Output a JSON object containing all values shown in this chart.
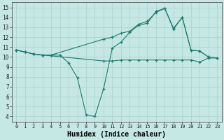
{
  "xlabel": "Humidex (Indice chaleur)",
  "bg_color": "#c5e8e5",
  "line_color": "#1e7b6e",
  "grid_color": "#aed4d0",
  "xlim": [
    -0.5,
    23.5
  ],
  "ylim": [
    3.5,
    15.5
  ],
  "x_ticks": [
    0,
    1,
    2,
    3,
    4,
    5,
    6,
    7,
    8,
    9,
    10,
    11,
    12,
    13,
    14,
    15,
    16,
    17,
    18,
    19,
    20,
    21,
    22,
    23
  ],
  "y_ticks": [
    4,
    5,
    6,
    7,
    8,
    9,
    10,
    11,
    12,
    13,
    14,
    15
  ],
  "series1_x": [
    0,
    1,
    2,
    3,
    10,
    11,
    12,
    13,
    14,
    15,
    16,
    17,
    18,
    19,
    20,
    21,
    22,
    23
  ],
  "series1_y": [
    10.7,
    10.5,
    10.3,
    10.2,
    9.6,
    9.6,
    9.7,
    9.7,
    9.7,
    9.7,
    9.7,
    9.7,
    9.7,
    9.7,
    9.7,
    9.5,
    9.9,
    9.9
  ],
  "series2_x": [
    0,
    1,
    2,
    3,
    4,
    5,
    6,
    7,
    8,
    9,
    10,
    11,
    12,
    13,
    14,
    15,
    16,
    17,
    18,
    19,
    20,
    21,
    22
  ],
  "series2_y": [
    10.7,
    10.5,
    10.3,
    10.2,
    10.2,
    10.2,
    9.4,
    7.9,
    4.2,
    4.0,
    6.8,
    10.9,
    11.5,
    12.5,
    13.2,
    13.4,
    14.6,
    14.9,
    12.8,
    14.0,
    10.7,
    10.6,
    10.0
  ],
  "series3_x": [
    0,
    1,
    2,
    3,
    4,
    10,
    11,
    12,
    13,
    14,
    15,
    16,
    17,
    18,
    19,
    20,
    21,
    22,
    23
  ],
  "series3_y": [
    10.7,
    10.5,
    10.3,
    10.2,
    10.2,
    11.8,
    12.0,
    12.4,
    12.6,
    13.3,
    13.6,
    14.5,
    14.9,
    12.9,
    14.0,
    10.7,
    10.6,
    10.0,
    9.9
  ]
}
